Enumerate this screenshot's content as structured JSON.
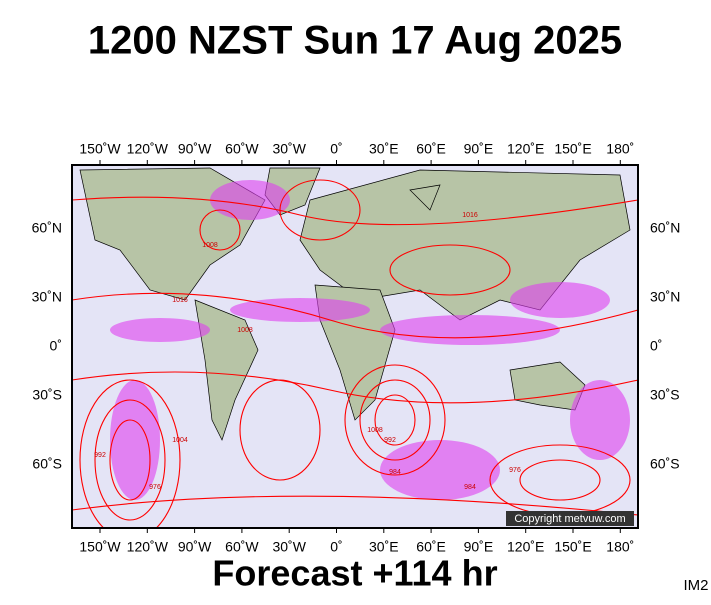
{
  "header": {
    "title": "1200 NZST Sun 17 Aug 2025"
  },
  "map": {
    "lon_labels": [
      "150˚W",
      "120˚W",
      "90˚W",
      "60˚W",
      "30˚W",
      "0˚",
      "30˚E",
      "60˚E",
      "90˚E",
      "120˚E",
      "150˚E",
      "180˚"
    ],
    "lat_labels": [
      "60˚N",
      "30˚N",
      "0˚",
      "30˚S",
      "60˚S"
    ],
    "isobar_labels": [
      "1008",
      "1016",
      "1008",
      "992",
      "976",
      "984",
      "1008",
      "992",
      "976",
      "984",
      "1004",
      "1016"
    ],
    "copyright": "Copyright metvuw.com"
  },
  "footer": {
    "forecast": "Forecast +114 hr",
    "code": "IM2"
  }
}
